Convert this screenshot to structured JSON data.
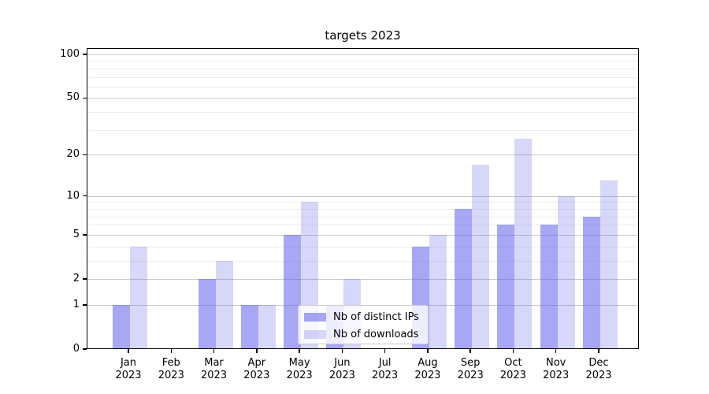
{
  "title": "targets 2023",
  "chart_data": {
    "type": "bar",
    "title": "targets 2023",
    "xlabel": "",
    "ylabel": "",
    "yscale": "log1p",
    "ylim": [
      0,
      111
    ],
    "grid": true,
    "legend_position": "lower center",
    "year": "2023",
    "categories": [
      "Jan",
      "Feb",
      "Mar",
      "Apr",
      "May",
      "Jun",
      "Jul",
      "Aug",
      "Sep",
      "Oct",
      "Nov",
      "Dec"
    ],
    "x_tick_labels": [
      "Jan 2023",
      "Feb 2023",
      "Mar 2023",
      "Apr 2023",
      "May 2023",
      "Jun 2023",
      "Jul 2023",
      "Aug 2023",
      "Sep 2023",
      "Oct 2023",
      "Nov 2023",
      "Dec 2023"
    ],
    "y_major_ticks": [
      0,
      1,
      2,
      5,
      10,
      20,
      50,
      100
    ],
    "y_minor_ticks": [
      3,
      4,
      6,
      7,
      8,
      9,
      30,
      40,
      60,
      70,
      80,
      90
    ],
    "series": [
      {
        "name": "Nb of distinct IPs",
        "color": "rgba(88,88,232,0.53)",
        "values": [
          1,
          0,
          2,
          1,
          5,
          1,
          0,
          4,
          8,
          6,
          6,
          7
        ]
      },
      {
        "name": "Nb of downloads",
        "color": "rgba(88,88,232,0.24)",
        "values": [
          4,
          0,
          3,
          1,
          9,
          2,
          0,
          5,
          17,
          26,
          10,
          13
        ]
      }
    ],
    "colors": {
      "grid_major": "#c9c9c9",
      "grid_minor": "#ececec",
      "axis": "#000000",
      "legend_border": "#cccccc"
    }
  }
}
